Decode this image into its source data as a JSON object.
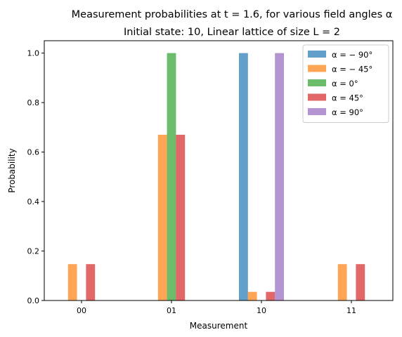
{
  "chart_data": {
    "type": "bar",
    "title": "Measurement probabilities at t = 1.6, for various field angles α",
    "subtitle": "Initial state: 10, Linear lattice of size L = 2",
    "xlabel": "Measurement",
    "ylabel": "Probability",
    "categories": [
      "00",
      "01",
      "10",
      "11"
    ],
    "ylim": [
      0,
      1.05
    ],
    "yticks": [
      "0.0",
      "0.2",
      "0.4",
      "0.6",
      "0.8",
      "1.0"
    ],
    "legend_position": "top-right",
    "grid": false,
    "series": [
      {
        "name": "α = − 90°",
        "color": "#1f77b4",
        "values": [
          0,
          0,
          1.0,
          0
        ]
      },
      {
        "name": "α = − 45°",
        "color": "#ff7f0e",
        "values": [
          0.147,
          0.67,
          0.035,
          0.147
        ]
      },
      {
        "name": "α = 0°",
        "color": "#2ca02c",
        "values": [
          0,
          1.0,
          0,
          0
        ]
      },
      {
        "name": "α = 45°",
        "color": "#d62728",
        "values": [
          0.147,
          0.67,
          0.035,
          0.147
        ]
      },
      {
        "name": "α = 90°",
        "color": "#9467bd",
        "values": [
          0,
          0,
          1.0,
          0
        ]
      }
    ]
  }
}
